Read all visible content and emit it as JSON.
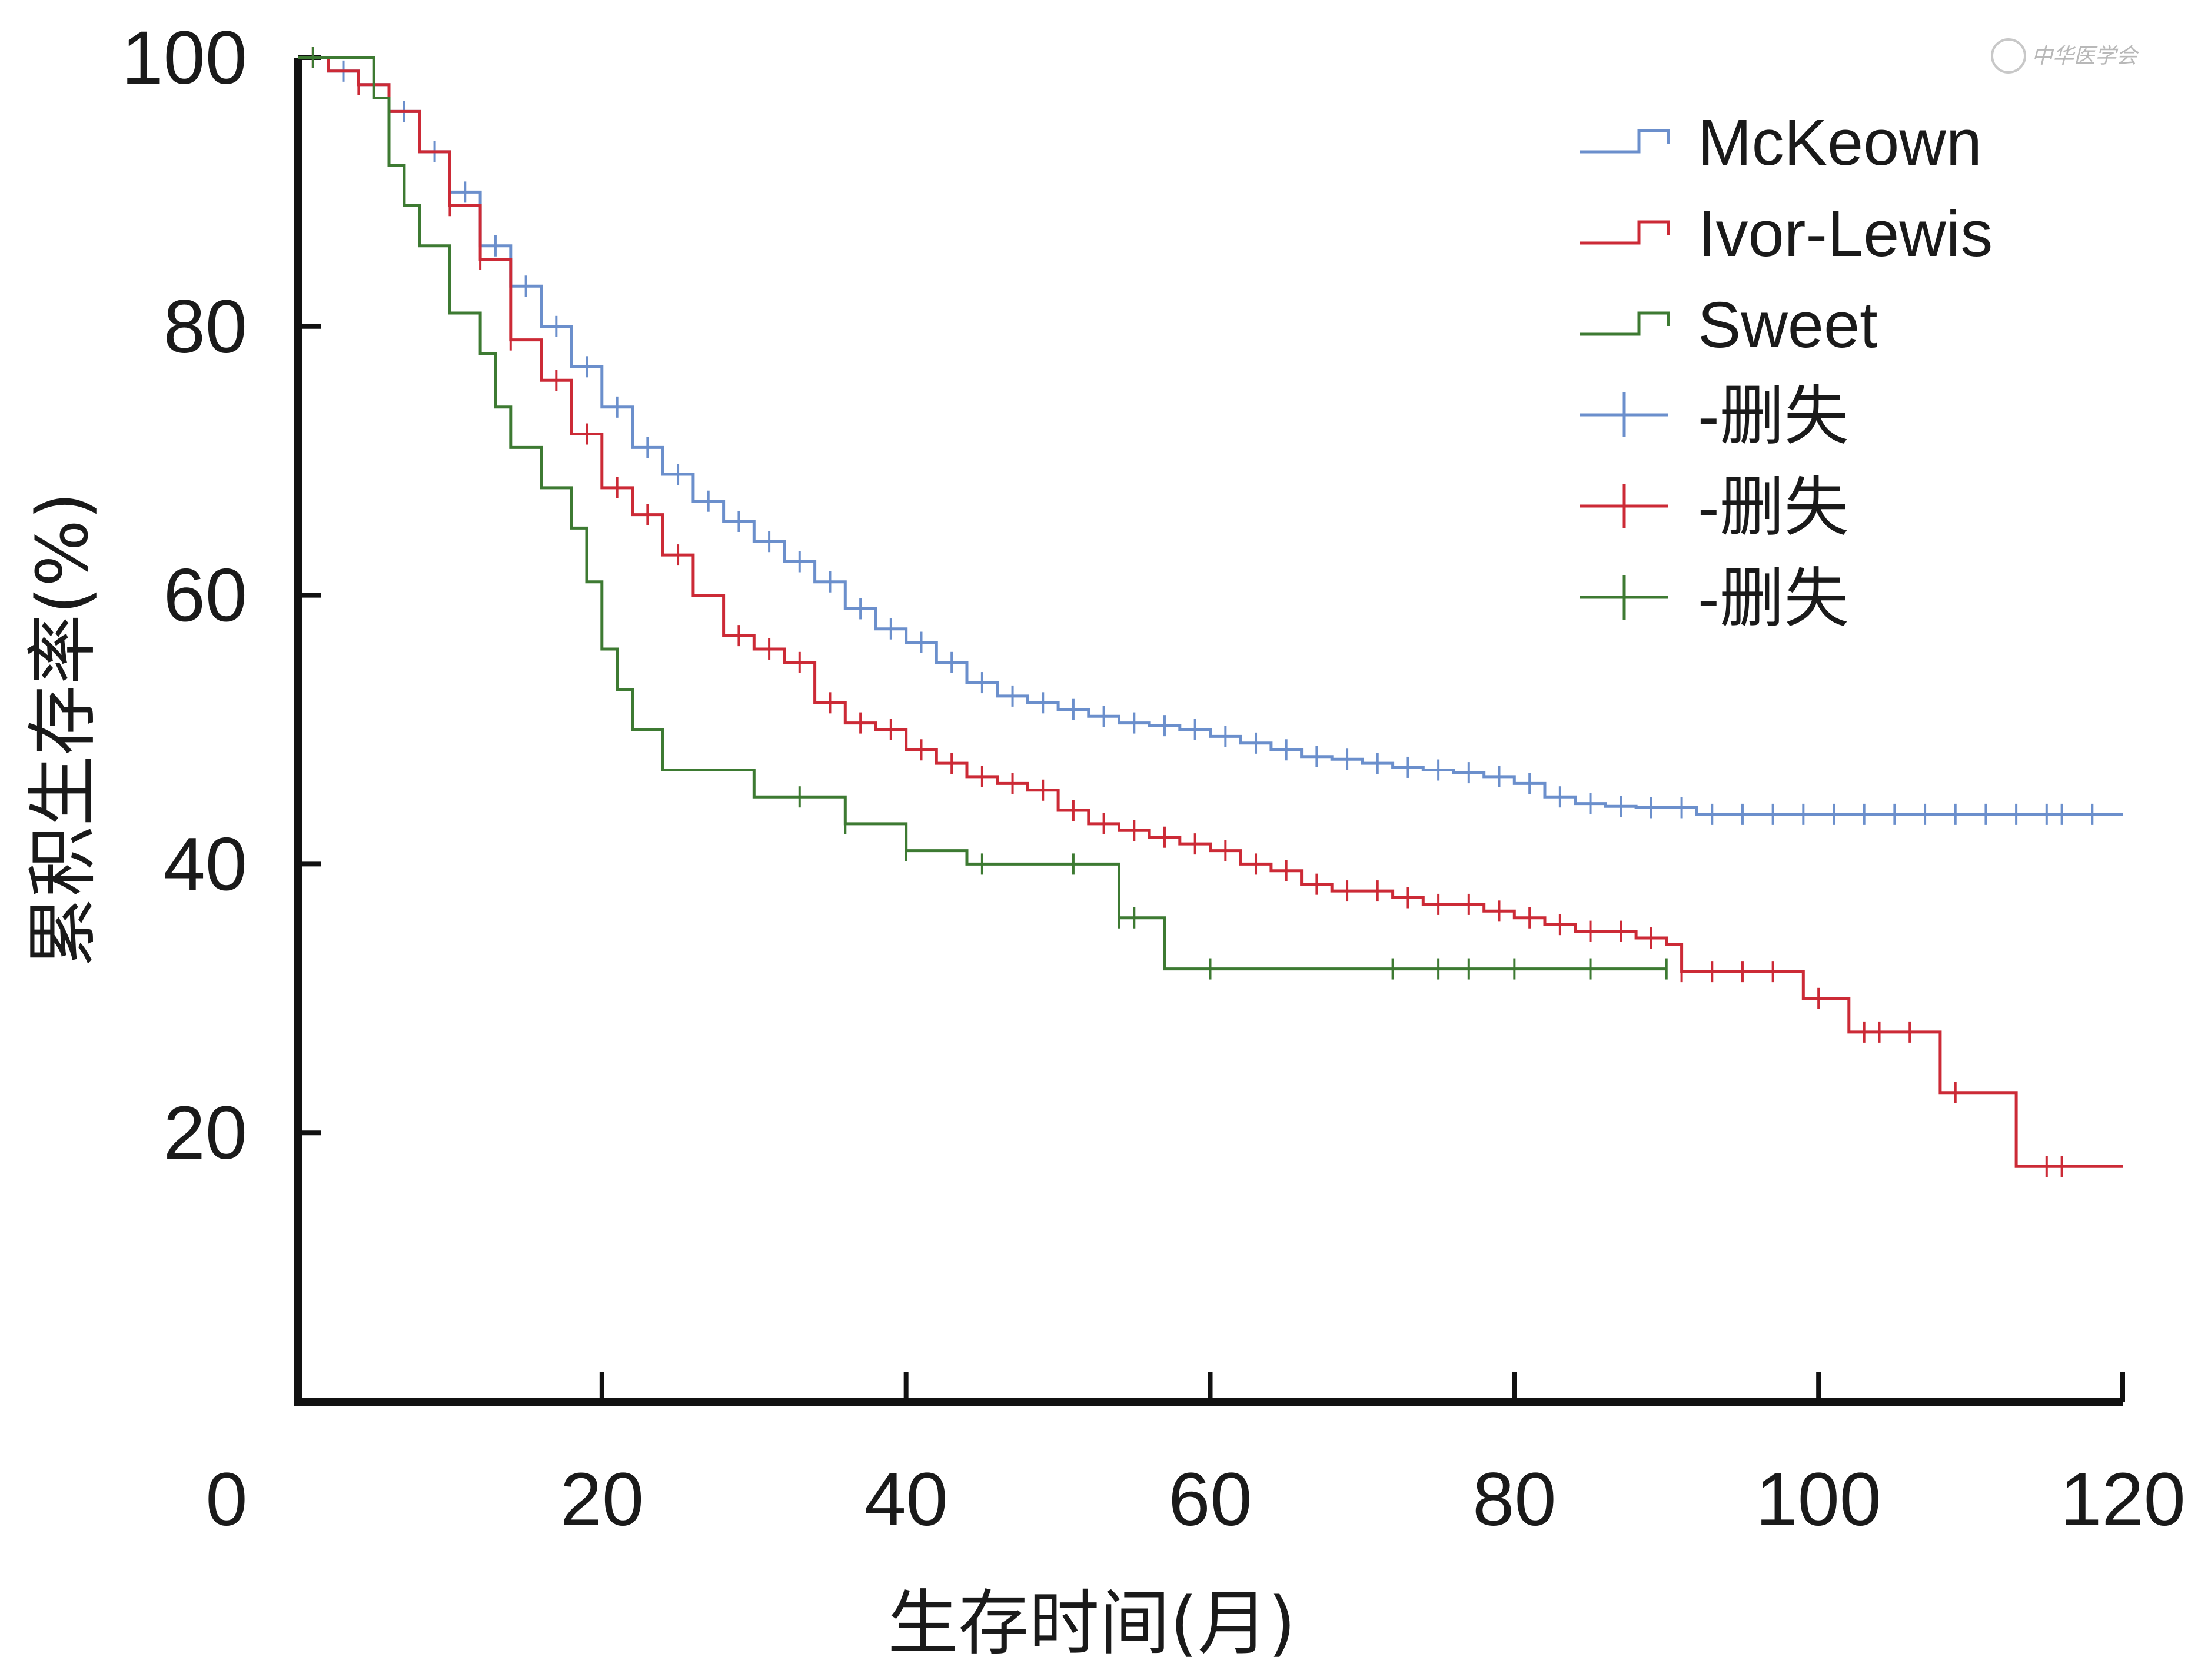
{
  "watermark": "中华医学会",
  "chart_data": {
    "type": "line",
    "subtype": "kaplan-meier",
    "xlabel": "生存时间(月)",
    "ylabel": "累积生存率(%)",
    "xlim": [
      0,
      120
    ],
    "ylim": [
      0,
      100
    ],
    "x_ticks": [
      "0",
      "20",
      "40",
      "60",
      "80",
      "100",
      "120"
    ],
    "y_ticks": [
      "20",
      "40",
      "60",
      "80",
      "100"
    ],
    "grid": false,
    "legend_position": "top-right",
    "legend": [
      {
        "label": "McKeown",
        "kind": "step",
        "color": "#6b8fcc"
      },
      {
        "label": "Ivor-Lewis",
        "kind": "step",
        "color": "#cc2a36"
      },
      {
        "label": "Sweet",
        "kind": "step",
        "color": "#3d7a32"
      },
      {
        "label": "-删失",
        "kind": "censor",
        "color": "#6b8fcc"
      },
      {
        "label": "-删失",
        "kind": "censor",
        "color": "#cc2a36"
      },
      {
        "label": "-删失",
        "kind": "censor",
        "color": "#3d7a32"
      }
    ],
    "series": [
      {
        "name": "McKeown",
        "color": "#6b8fcc",
        "x": [
          0,
          2,
          4,
          6,
          8,
          10,
          12,
          14,
          16,
          18,
          20,
          22,
          24,
          26,
          28,
          30,
          32,
          34,
          36,
          38,
          40,
          42,
          44,
          46,
          48,
          50,
          52,
          54,
          56,
          58,
          60,
          62,
          64,
          66,
          68,
          70,
          72,
          74,
          76,
          78,
          80,
          82,
          84,
          86,
          88,
          90,
          92,
          94,
          96,
          98,
          100,
          105,
          110,
          115,
          120
        ],
        "y": [
          100,
          99,
          98,
          96,
          93,
          90,
          86,
          83,
          80,
          77,
          74,
          71,
          69,
          67,
          65.5,
          64,
          62.5,
          61,
          59,
          57.5,
          56.5,
          55,
          53.5,
          52.5,
          52,
          51.5,
          51,
          50.5,
          50.3,
          50,
          49.5,
          49,
          48.5,
          48,
          47.8,
          47.5,
          47.2,
          47,
          46.8,
          46.5,
          46,
          45,
          44.5,
          44.3,
          44.2,
          44.2,
          43.7,
          43.7,
          43.7,
          43.7,
          43.7,
          43.7,
          43.7,
          43.7,
          43.7
        ],
        "censored_x": [
          3,
          5,
          7,
          9,
          11,
          13,
          15,
          17,
          19,
          21,
          23,
          25,
          27,
          29,
          31,
          33,
          35,
          37,
          39,
          41,
          43,
          45,
          47,
          49,
          51,
          53,
          55,
          57,
          59,
          61,
          63,
          65,
          67,
          69,
          71,
          73,
          75,
          77,
          79,
          81,
          83,
          85,
          87,
          89,
          91,
          93,
          95,
          97,
          99,
          101,
          103,
          105,
          107,
          109,
          111,
          113,
          115,
          116,
          118
        ]
      },
      {
        "name": "Ivor-Lewis",
        "color": "#cc2a36",
        "x": [
          0,
          2,
          4,
          6,
          8,
          10,
          12,
          14,
          16,
          18,
          20,
          22,
          24,
          26,
          28,
          30,
          32,
          34,
          36,
          38,
          40,
          42,
          44,
          46,
          48,
          50,
          52,
          54,
          56,
          58,
          60,
          62,
          64,
          66,
          68,
          70,
          72,
          74,
          76,
          78,
          80,
          82,
          84,
          86,
          88,
          90,
          91,
          95,
          99,
          102,
          105,
          108,
          113,
          120
        ],
        "y": [
          100,
          99,
          98,
          96,
          93,
          89,
          85,
          79,
          76,
          72,
          68,
          66,
          63,
          60,
          57,
          56,
          55,
          52,
          50.5,
          50,
          48.5,
          47.5,
          46.5,
          46,
          45.5,
          44,
          43,
          42.5,
          42,
          41.5,
          41,
          40,
          39.5,
          38.5,
          38,
          38,
          37.5,
          37,
          37,
          36.5,
          36,
          35.5,
          35,
          35,
          34.5,
          34,
          32,
          32,
          30,
          27.5,
          27.5,
          23,
          17.5,
          17.5
        ],
        "censored_x": [
          1,
          4,
          10,
          12,
          14,
          17,
          19,
          21,
          23,
          25,
          29,
          31,
          33,
          35,
          37,
          39,
          41,
          43,
          45,
          47,
          49,
          51,
          53,
          55,
          57,
          59,
          61,
          63,
          65,
          67,
          69,
          71,
          73,
          75,
          77,
          79,
          81,
          83,
          85,
          87,
          89,
          91,
          93,
          95,
          97,
          100,
          103,
          104,
          106,
          109,
          115,
          116
        ]
      },
      {
        "name": "Sweet",
        "color": "#3d7a32",
        "x": [
          0,
          4,
          5,
          6,
          7,
          8,
          10,
          12,
          13,
          14,
          16,
          18,
          19,
          20,
          21,
          22,
          24,
          30,
          36,
          40,
          44,
          54,
          57,
          60,
          70,
          80,
          90
        ],
        "y": [
          100,
          100,
          97,
          92,
          89,
          86,
          81,
          78,
          74,
          71,
          68,
          65,
          61,
          56,
          53,
          50,
          47,
          45,
          43,
          41,
          40,
          36,
          32.2,
          32.2,
          32.2,
          32.2,
          32.2
        ],
        "censored_x": [
          1,
          33,
          36,
          40,
          45,
          51,
          54,
          55,
          60,
          72,
          75,
          77,
          80,
          85,
          90
        ]
      }
    ]
  }
}
